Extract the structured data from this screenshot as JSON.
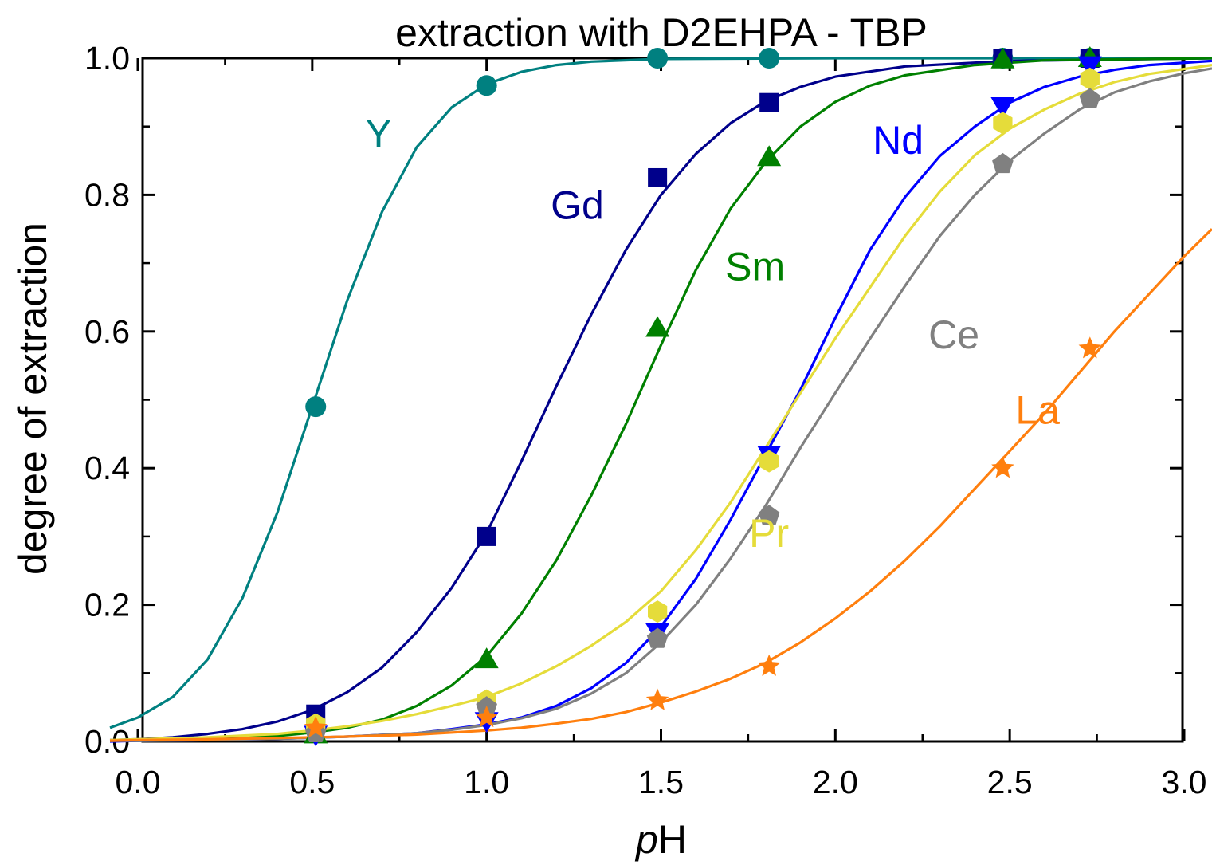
{
  "chart_data": {
    "type": "line",
    "title": "extraction with D2EHPA - TBP",
    "xlabel_italic": "p",
    "xlabel_rest": "H",
    "ylabel": "degree of extraction",
    "xlim": [
      -0.08,
      3.08
    ],
    "ylim": [
      0.0,
      1.0
    ],
    "x_ticks": [
      "0.0",
      "0.5",
      "1.0",
      "1.5",
      "2.0",
      "2.5",
      "3.0"
    ],
    "y_ticks": [
      "0.0",
      "0.2",
      "0.4",
      "0.6",
      "0.8",
      "1.0"
    ],
    "x_tick_values": [
      0.0,
      0.5,
      1.0,
      1.5,
      2.0,
      2.5,
      3.0
    ],
    "y_tick_values": [
      0.0,
      0.2,
      0.4,
      0.6,
      0.8,
      1.0
    ],
    "grid": false,
    "series": [
      {
        "name": "Y",
        "color": "#008080",
        "marker": "circle",
        "points": [
          [
            0.51,
            0.49
          ],
          [
            1.0,
            0.96
          ],
          [
            1.49,
            1.0
          ],
          [
            1.81,
            1.0
          ],
          [
            2.48,
            1.0
          ],
          [
            2.73,
            1.0
          ]
        ],
        "curve": [
          [
            -0.08,
            0.02
          ],
          [
            0.0,
            0.035
          ],
          [
            0.1,
            0.065
          ],
          [
            0.2,
            0.12
          ],
          [
            0.3,
            0.21
          ],
          [
            0.4,
            0.335
          ],
          [
            0.5,
            0.49
          ],
          [
            0.6,
            0.645
          ],
          [
            0.7,
            0.775
          ],
          [
            0.8,
            0.87
          ],
          [
            0.9,
            0.928
          ],
          [
            1.0,
            0.962
          ],
          [
            1.1,
            0.98
          ],
          [
            1.2,
            0.99
          ],
          [
            1.3,
            0.995
          ],
          [
            1.5,
            0.999
          ],
          [
            2.0,
            1.0
          ],
          [
            3.08,
            1.0
          ]
        ]
      },
      {
        "name": "Gd",
        "color": "#00008B",
        "marker": "square",
        "points": [
          [
            0.51,
            0.04
          ],
          [
            1.0,
            0.3
          ],
          [
            1.49,
            0.825
          ],
          [
            1.81,
            0.935
          ],
          [
            2.48,
            1.0
          ],
          [
            2.73,
            1.0
          ]
        ],
        "curve": [
          [
            -0.08,
            0.002
          ],
          [
            0.0,
            0.003
          ],
          [
            0.1,
            0.006
          ],
          [
            0.2,
            0.011
          ],
          [
            0.3,
            0.018
          ],
          [
            0.4,
            0.029
          ],
          [
            0.5,
            0.046
          ],
          [
            0.6,
            0.072
          ],
          [
            0.7,
            0.108
          ],
          [
            0.8,
            0.16
          ],
          [
            0.9,
            0.225
          ],
          [
            1.0,
            0.305
          ],
          [
            1.1,
            0.41
          ],
          [
            1.2,
            0.52
          ],
          [
            1.3,
            0.625
          ],
          [
            1.4,
            0.72
          ],
          [
            1.5,
            0.8
          ],
          [
            1.6,
            0.86
          ],
          [
            1.7,
            0.905
          ],
          [
            1.8,
            0.937
          ],
          [
            1.9,
            0.958
          ],
          [
            2.0,
            0.973
          ],
          [
            2.2,
            0.988
          ],
          [
            2.5,
            0.996
          ],
          [
            3.08,
            1.0
          ]
        ]
      },
      {
        "name": "Sm",
        "color": "#008000",
        "marker": "triangle-up",
        "points": [
          [
            0.51,
            0.01
          ],
          [
            1.0,
            0.12
          ],
          [
            1.49,
            0.605
          ],
          [
            1.81,
            0.855
          ],
          [
            2.48,
            0.998
          ],
          [
            2.73,
            1.0
          ]
        ],
        "curve": [
          [
            -0.08,
            0.001
          ],
          [
            0.0,
            0.001
          ],
          [
            0.2,
            0.003
          ],
          [
            0.4,
            0.008
          ],
          [
            0.5,
            0.013
          ],
          [
            0.6,
            0.02
          ],
          [
            0.7,
            0.032
          ],
          [
            0.8,
            0.052
          ],
          [
            0.9,
            0.082
          ],
          [
            1.0,
            0.125
          ],
          [
            1.1,
            0.187
          ],
          [
            1.2,
            0.265
          ],
          [
            1.3,
            0.36
          ],
          [
            1.4,
            0.465
          ],
          [
            1.5,
            0.58
          ],
          [
            1.6,
            0.69
          ],
          [
            1.7,
            0.78
          ],
          [
            1.8,
            0.848
          ],
          [
            1.9,
            0.9
          ],
          [
            2.0,
            0.936
          ],
          [
            2.1,
            0.96
          ],
          [
            2.2,
            0.975
          ],
          [
            2.4,
            0.99
          ],
          [
            2.6,
            0.997
          ],
          [
            3.08,
            1.0
          ]
        ]
      },
      {
        "name": "Nd",
        "color": "#0000FF",
        "marker": "triangle-down",
        "points": [
          [
            0.51,
            0.01
          ],
          [
            1.0,
            0.03
          ],
          [
            1.49,
            0.16
          ],
          [
            1.81,
            0.42
          ],
          [
            2.48,
            0.93
          ],
          [
            2.73,
            0.99
          ]
        ],
        "curve": [
          [
            -0.08,
            0.0
          ],
          [
            0.0,
            0.001
          ],
          [
            0.2,
            0.002
          ],
          [
            0.4,
            0.004
          ],
          [
            0.6,
            0.007
          ],
          [
            0.8,
            0.012
          ],
          [
            0.9,
            0.018
          ],
          [
            1.0,
            0.025
          ],
          [
            1.1,
            0.035
          ],
          [
            1.2,
            0.052
          ],
          [
            1.3,
            0.078
          ],
          [
            1.4,
            0.115
          ],
          [
            1.5,
            0.168
          ],
          [
            1.6,
            0.238
          ],
          [
            1.7,
            0.325
          ],
          [
            1.8,
            0.42
          ],
          [
            1.9,
            0.515
          ],
          [
            2.0,
            0.62
          ],
          [
            2.1,
            0.72
          ],
          [
            2.2,
            0.797
          ],
          [
            2.3,
            0.857
          ],
          [
            2.4,
            0.9
          ],
          [
            2.5,
            0.935
          ],
          [
            2.6,
            0.958
          ],
          [
            2.7,
            0.973
          ],
          [
            2.8,
            0.983
          ],
          [
            2.9,
            0.99
          ],
          [
            3.08,
            0.996
          ]
        ]
      },
      {
        "name": "Pr",
        "color": "#E5DC3A",
        "marker": "hexagon",
        "points": [
          [
            0.51,
            0.025
          ],
          [
            1.0,
            0.06
          ],
          [
            1.49,
            0.19
          ],
          [
            1.81,
            0.41
          ],
          [
            2.48,
            0.905
          ],
          [
            2.73,
            0.97
          ]
        ],
        "curve": [
          [
            -0.08,
            0.002
          ],
          [
            0.0,
            0.003
          ],
          [
            0.2,
            0.006
          ],
          [
            0.4,
            0.011
          ],
          [
            0.5,
            0.016
          ],
          [
            0.6,
            0.022
          ],
          [
            0.7,
            0.03
          ],
          [
            0.8,
            0.04
          ],
          [
            0.9,
            0.052
          ],
          [
            1.0,
            0.065
          ],
          [
            1.1,
            0.085
          ],
          [
            1.2,
            0.11
          ],
          [
            1.3,
            0.14
          ],
          [
            1.4,
            0.175
          ],
          [
            1.5,
            0.22
          ],
          [
            1.6,
            0.28
          ],
          [
            1.7,
            0.35
          ],
          [
            1.8,
            0.43
          ],
          [
            1.9,
            0.51
          ],
          [
            2.0,
            0.59
          ],
          [
            2.1,
            0.665
          ],
          [
            2.2,
            0.74
          ],
          [
            2.3,
            0.805
          ],
          [
            2.4,
            0.858
          ],
          [
            2.5,
            0.897
          ],
          [
            2.6,
            0.925
          ],
          [
            2.7,
            0.948
          ],
          [
            2.8,
            0.965
          ],
          [
            2.9,
            0.977
          ],
          [
            3.08,
            0.99
          ]
        ]
      },
      {
        "name": "Ce",
        "color": "#808080",
        "marker": "pentagon",
        "points": [
          [
            0.51,
            0.012
          ],
          [
            1.0,
            0.05
          ],
          [
            1.49,
            0.15
          ],
          [
            1.81,
            0.33
          ],
          [
            2.48,
            0.845
          ],
          [
            2.73,
            0.94
          ]
        ],
        "curve": [
          [
            -0.08,
            0.001
          ],
          [
            0.0,
            0.001
          ],
          [
            0.2,
            0.002
          ],
          [
            0.4,
            0.004
          ],
          [
            0.6,
            0.007
          ],
          [
            0.8,
            0.012
          ],
          [
            0.9,
            0.017
          ],
          [
            1.0,
            0.024
          ],
          [
            1.1,
            0.034
          ],
          [
            1.2,
            0.048
          ],
          [
            1.3,
            0.07
          ],
          [
            1.4,
            0.1
          ],
          [
            1.5,
            0.145
          ],
          [
            1.6,
            0.2
          ],
          [
            1.7,
            0.268
          ],
          [
            1.8,
            0.345
          ],
          [
            1.9,
            0.43
          ],
          [
            2.0,
            0.51
          ],
          [
            2.1,
            0.59
          ],
          [
            2.2,
            0.667
          ],
          [
            2.3,
            0.74
          ],
          [
            2.4,
            0.8
          ],
          [
            2.5,
            0.85
          ],
          [
            2.6,
            0.89
          ],
          [
            2.7,
            0.925
          ],
          [
            2.8,
            0.95
          ],
          [
            2.9,
            0.966
          ],
          [
            3.0,
            0.978
          ],
          [
            3.08,
            0.985
          ]
        ]
      },
      {
        "name": "La",
        "color": "#FF7F0E",
        "marker": "star",
        "points": [
          [
            0.51,
            0.02
          ],
          [
            1.0,
            0.035
          ],
          [
            1.49,
            0.06
          ],
          [
            1.81,
            0.11
          ],
          [
            2.48,
            0.4
          ],
          [
            2.73,
            0.575
          ]
        ],
        "curve": [
          [
            -0.08,
            0.001
          ],
          [
            0.0,
            0.002
          ],
          [
            0.2,
            0.003
          ],
          [
            0.4,
            0.005
          ],
          [
            0.6,
            0.007
          ],
          [
            0.8,
            0.01
          ],
          [
            1.0,
            0.016
          ],
          [
            1.1,
            0.02
          ],
          [
            1.2,
            0.026
          ],
          [
            1.3,
            0.033
          ],
          [
            1.4,
            0.043
          ],
          [
            1.5,
            0.057
          ],
          [
            1.6,
            0.073
          ],
          [
            1.7,
            0.092
          ],
          [
            1.8,
            0.115
          ],
          [
            1.9,
            0.145
          ],
          [
            2.0,
            0.18
          ],
          [
            2.1,
            0.22
          ],
          [
            2.2,
            0.265
          ],
          [
            2.3,
            0.315
          ],
          [
            2.4,
            0.37
          ],
          [
            2.5,
            0.425
          ],
          [
            2.6,
            0.48
          ],
          [
            2.7,
            0.54
          ],
          [
            2.8,
            0.6
          ],
          [
            2.9,
            0.655
          ],
          [
            3.0,
            0.71
          ],
          [
            3.08,
            0.75
          ]
        ]
      }
    ],
    "labels": [
      {
        "text": "Y",
        "series": "Y",
        "x": 0.69,
        "y": 0.87
      },
      {
        "text": "Gd",
        "series": "Gd",
        "x": 1.26,
        "y": 0.765
      },
      {
        "text": "Sm",
        "series": "Sm",
        "x": 1.77,
        "y": 0.675
      },
      {
        "text": "Nd",
        "series": "Nd",
        "x": 2.18,
        "y": 0.86
      },
      {
        "text": "Ce",
        "series": "Ce",
        "x": 2.34,
        "y": 0.575
      },
      {
        "text": "La",
        "series": "La",
        "x": 2.58,
        "y": 0.465
      },
      {
        "text": "Pr",
        "series": "Pr",
        "x": 1.81,
        "y": 0.285
      }
    ]
  }
}
